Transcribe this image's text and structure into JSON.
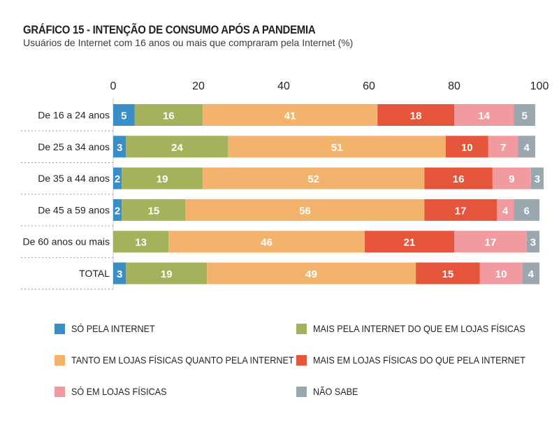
{
  "title": "GRÁFICO 15 - INTENÇÃO DE CONSUMO APÓS A PANDEMIA",
  "subtitle": "Usuários de Internet com 16 anos ou mais que compraram pela Internet (%)",
  "chart_data": {
    "type": "bar",
    "orientation": "horizontal",
    "stacked": true,
    "title": "GRÁFICO 15 - INTENÇÃO DE CONSUMO APÓS A PANDEMIA",
    "subtitle": "Usuários de Internet com 16 anos ou mais que compraram pela Internet (%)",
    "xlim": [
      0,
      100
    ],
    "xticks": [
      0,
      20,
      40,
      60,
      80,
      100
    ],
    "grid": false,
    "legend_position": "bottom",
    "categories": [
      "De 16 a 24 anos",
      "De 25 a 34 anos",
      "De 35 a 44 anos",
      "De 45 a 59 anos",
      "De 60 anos ou mais",
      "TOTAL"
    ],
    "series": [
      {
        "name": "SÓ PELA INTERNET",
        "color": "#3a8ec6",
        "values": [
          5,
          3,
          2,
          2,
          0,
          3
        ]
      },
      {
        "name": "MAIS PELA INTERNET DO QUE EM LOJAS FÍSICAS",
        "color": "#a4b35b",
        "values": [
          16,
          24,
          19,
          15,
          13,
          19
        ]
      },
      {
        "name": "TANTO EM LOJAS FÍSICAS QUANTO PELA INTERNET",
        "color": "#f3b36d",
        "values": [
          41,
          51,
          52,
          56,
          46,
          49
        ]
      },
      {
        "name": "MAIS EM LOJAS FÍSICAS DO QUE PELA INTERNET",
        "color": "#e5553b",
        "values": [
          18,
          10,
          16,
          17,
          21,
          15
        ]
      },
      {
        "name": "SÓ EM LOJAS FÍSICAS",
        "color": "#f19aa0",
        "values": [
          14,
          7,
          9,
          4,
          17,
          10
        ]
      },
      {
        "name": "NÃO SABE",
        "color": "#9ba7ae",
        "values": [
          5,
          4,
          3,
          6,
          3,
          4
        ]
      }
    ]
  }
}
